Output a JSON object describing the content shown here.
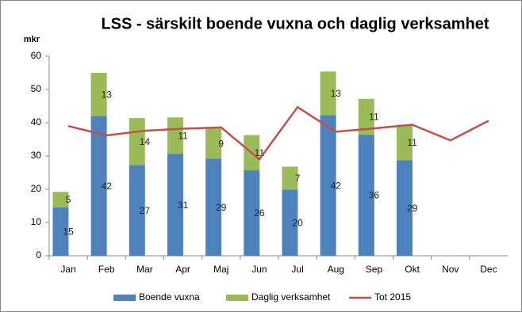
{
  "chart_data": {
    "type": "bar",
    "stacked": true,
    "title": "LSS - särskilt boende vuxna och daglig verksamhet",
    "y_label": "mkr",
    "categories": [
      "Jan",
      "Feb",
      "Mar",
      "Apr",
      "Maj",
      "Jun",
      "Jul",
      "Aug",
      "Sep",
      "Okt",
      "Nov",
      "Dec"
    ],
    "series": [
      {
        "name": "Boende vuxna",
        "type": "bar",
        "color": "#4f81bd",
        "values": [
          14.6,
          42,
          27.3,
          30.6,
          29.2,
          25.7,
          19.9,
          42.3,
          36.4,
          28.7,
          null,
          null
        ],
        "value_labels": [
          "15",
          "42",
          "27",
          "31",
          "29",
          "26",
          "20",
          "42",
          "36",
          "29",
          null,
          null
        ]
      },
      {
        "name": "Daglig verksamhet",
        "type": "bar",
        "color": "#9bbb59",
        "values": [
          4.6,
          13,
          14.1,
          11,
          9.1,
          10.6,
          6.9,
          13.1,
          10.8,
          10.7,
          null,
          null
        ],
        "value_labels": [
          "5",
          "13",
          "14",
          "11",
          "9",
          "11",
          "7",
          "13",
          "11",
          "11",
          null,
          null
        ]
      },
      {
        "name": "Tot 2015",
        "type": "line",
        "color": "#c0504d",
        "values": [
          39,
          36.2,
          37.6,
          38.2,
          38.6,
          29,
          44.7,
          37.3,
          38.3,
          39.4,
          34.7,
          40.6
        ]
      }
    ],
    "ylim": [
      0,
      60
    ],
    "yticks": [
      0,
      10,
      20,
      30,
      40,
      50,
      60
    ],
    "grid": false,
    "legend": "bottom"
  }
}
